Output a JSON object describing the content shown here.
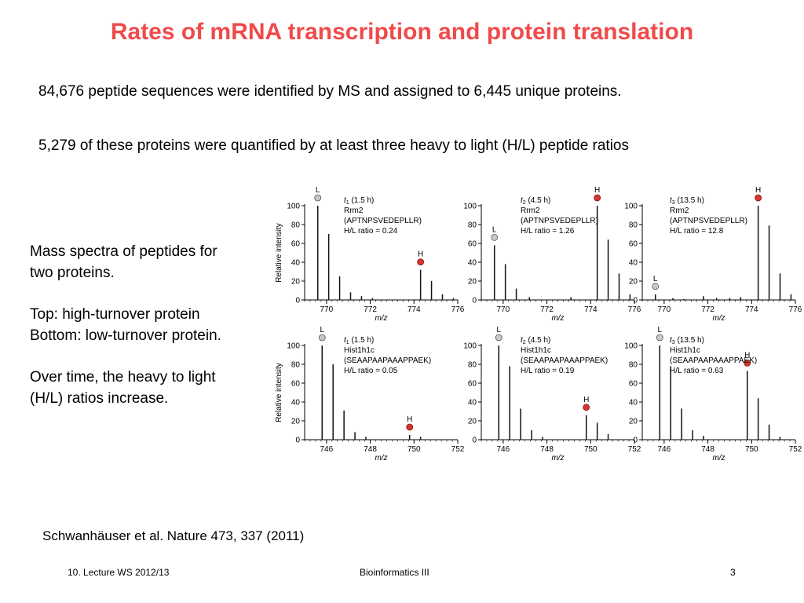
{
  "slide": {
    "title": "Rates of mRNA transcription and protein translation",
    "line1": "84,676 peptide sequences were identified by MS and assigned to 6,445 unique proteins.",
    "line2": "5,279 of these proteins were quantified by at least three heavy to light (H/L) peptide ratios",
    "side_text": [
      "Mass spectra of peptides for",
      "two proteins.",
      "",
      "Top: high-turnover protein",
      "Bottom: low-turnover protein.",
      "",
      "Over time, the heavy to light",
      "(H/L) ratios increase."
    ],
    "citation": "Schwanhäuser et al. Nature 473, 337 (2011)",
    "footer": {
      "left": "10. Lecture WS 2012/13",
      "center": "Bioinformatics III",
      "right": "3"
    }
  },
  "colors": {
    "title": "#f04a4a",
    "heavy_marker": "#d9352a",
    "light_marker": "#c9c9c9"
  },
  "chart_data": [
    {
      "type": "spectrum",
      "ylabel": "Relative intensity",
      "xlabel": "m/z",
      "ylim": [
        0,
        100
      ],
      "yticks": [
        0,
        20,
        40,
        60,
        80,
        100
      ],
      "xlim": [
        769,
        776
      ],
      "xticks": [
        770,
        772,
        774,
        776
      ],
      "timepoint_sub": "1",
      "timepoint_time": "(1.5 h)",
      "protein": "Rrm2",
      "peptide": "(APTNPSVEDEPLLR)",
      "ratio_text": "H/L ratio = 0.24",
      "light_label": "L",
      "heavy_label": "H",
      "light_peak": 769.6,
      "heavy_peak": 774.3,
      "peaks": [
        [
          769.6,
          100
        ],
        [
          770.1,
          70
        ],
        [
          770.6,
          25
        ],
        [
          771.1,
          8
        ],
        [
          771.6,
          4
        ],
        [
          772.1,
          2
        ],
        [
          774.3,
          32
        ],
        [
          774.8,
          20
        ],
        [
          775.3,
          6
        ],
        [
          775.8,
          2
        ]
      ]
    },
    {
      "type": "spectrum",
      "ylabel": "",
      "xlabel": "m/z",
      "ylim": [
        0,
        100
      ],
      "yticks": [
        0,
        20,
        40,
        60,
        80,
        100
      ],
      "xlim": [
        769,
        776
      ],
      "xticks": [
        770,
        772,
        774,
        776
      ],
      "timepoint_sub": "2",
      "timepoint_time": "(4.5 h)",
      "protein": "Rrm2",
      "peptide": "(APTNPSVEDEPLLR)",
      "ratio_text": "H/L ratio = 1.26",
      "light_label": "L",
      "heavy_label": "H",
      "light_peak": 769.6,
      "heavy_peak": 774.3,
      "peaks": [
        [
          769.6,
          58
        ],
        [
          770.1,
          38
        ],
        [
          770.6,
          12
        ],
        [
          771.2,
          3
        ],
        [
          773.1,
          3
        ],
        [
          774.3,
          100
        ],
        [
          774.8,
          64
        ],
        [
          775.3,
          28
        ],
        [
          775.8,
          6
        ]
      ]
    },
    {
      "type": "spectrum",
      "ylabel": "",
      "xlabel": "m/z",
      "ylim": [
        0,
        100
      ],
      "yticks": [
        0,
        20,
        40,
        60,
        80,
        100
      ],
      "xlim": [
        769,
        776
      ],
      "xticks": [
        770,
        772,
        774,
        776
      ],
      "timepoint_sub": "3",
      "timepoint_time": "(13.5 h)",
      "protein": "Rrm2",
      "peptide": "(APTNPSVEDEPLLR)",
      "ratio_text": "H/L ratio = 12.8",
      "light_label": "L",
      "heavy_label": "H",
      "light_peak": 769.6,
      "heavy_peak": 774.3,
      "peaks": [
        [
          769.6,
          6
        ],
        [
          770.4,
          2
        ],
        [
          770.9,
          1
        ],
        [
          771.8,
          4
        ],
        [
          772.4,
          2
        ],
        [
          773.0,
          2
        ],
        [
          773.5,
          3
        ],
        [
          774.3,
          100
        ],
        [
          774.8,
          79
        ],
        [
          775.3,
          28
        ],
        [
          775.8,
          6
        ]
      ]
    },
    {
      "type": "spectrum",
      "ylabel": "Relative intensity",
      "xlabel": "m/z",
      "ylim": [
        0,
        100
      ],
      "yticks": [
        0,
        20,
        40,
        60,
        80,
        100
      ],
      "xlim": [
        745,
        752
      ],
      "xticks": [
        746,
        748,
        750,
        752
      ],
      "timepoint_sub": "1",
      "timepoint_time": "(1.5 h)",
      "protein": "Hist1h1c",
      "peptide": "(SEAAPAAPAAAPPAEK)",
      "ratio_text": "H/L ratio = 0.05",
      "light_label": "L",
      "heavy_label": "H",
      "light_peak": 745.8,
      "heavy_peak": 749.8,
      "peaks": [
        [
          745.8,
          100
        ],
        [
          746.3,
          80
        ],
        [
          746.8,
          31
        ],
        [
          747.3,
          8
        ],
        [
          747.8,
          3
        ],
        [
          749.8,
          5
        ],
        [
          750.3,
          3
        ]
      ]
    },
    {
      "type": "spectrum",
      "ylabel": "",
      "xlabel": "m/z",
      "ylim": [
        0,
        100
      ],
      "yticks": [
        0,
        20,
        40,
        60,
        80,
        100
      ],
      "xlim": [
        745,
        752
      ],
      "xticks": [
        746,
        748,
        750,
        752
      ],
      "timepoint_sub": "2",
      "timepoint_time": "(4.5 h)",
      "protein": "Hist1h1c",
      "peptide": "(SEAAPAAPAAAPPAEK)",
      "ratio_text": "H/L ratio = 0.19",
      "light_label": "L",
      "heavy_label": "H",
      "light_peak": 745.8,
      "heavy_peak": 749.8,
      "peaks": [
        [
          745.8,
          100
        ],
        [
          746.3,
          78
        ],
        [
          746.8,
          33
        ],
        [
          747.3,
          10
        ],
        [
          747.8,
          3
        ],
        [
          749.8,
          26
        ],
        [
          750.3,
          18
        ],
        [
          750.8,
          6
        ]
      ]
    },
    {
      "type": "spectrum",
      "ylabel": "",
      "xlabel": "m/z",
      "ylim": [
        0,
        100
      ],
      "yticks": [
        0,
        20,
        40,
        60,
        80,
        100
      ],
      "xlim": [
        745,
        752
      ],
      "xticks": [
        746,
        748,
        750,
        752
      ],
      "timepoint_sub": "3",
      "timepoint_time": "(13.5 h)",
      "protein": "Hist1h1c",
      "peptide": "(SEAAPAAPAAAPPAEK)",
      "ratio_text": "H/L ratio = 0.63",
      "light_label": "L",
      "heavy_label": "H",
      "light_peak": 745.8,
      "heavy_peak": 749.8,
      "peaks": [
        [
          745.8,
          100
        ],
        [
          746.3,
          78
        ],
        [
          746.8,
          33
        ],
        [
          747.3,
          10
        ],
        [
          747.8,
          4
        ],
        [
          749.8,
          73
        ],
        [
          750.3,
          44
        ],
        [
          750.8,
          16
        ],
        [
          751.3,
          3
        ]
      ]
    }
  ]
}
